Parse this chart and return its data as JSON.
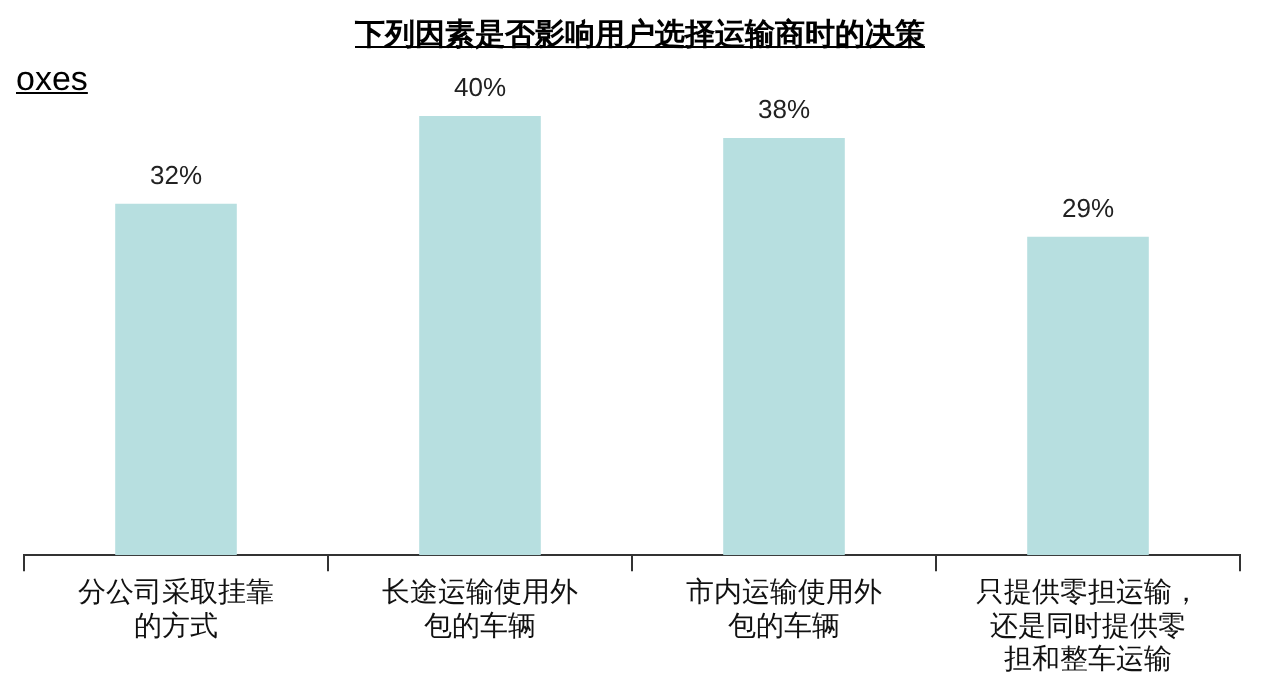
{
  "chart_data": {
    "type": "bar",
    "title": "下列因素是否影响用户选择运输商时的决策",
    "annotations": [
      "oxes"
    ],
    "categories": [
      "分公司采取挂靠的方式",
      "长途运输使用外包的车辆",
      "市内运输使用外包的车辆",
      "只提供零担运输，还是同时提供零担和整车运输"
    ],
    "values": [
      32,
      40,
      38,
      29
    ],
    "value_labels": [
      "32%",
      "40%",
      "38%",
      "29%"
    ],
    "color": "#b7dfe0",
    "grid": false,
    "legend": false
  }
}
